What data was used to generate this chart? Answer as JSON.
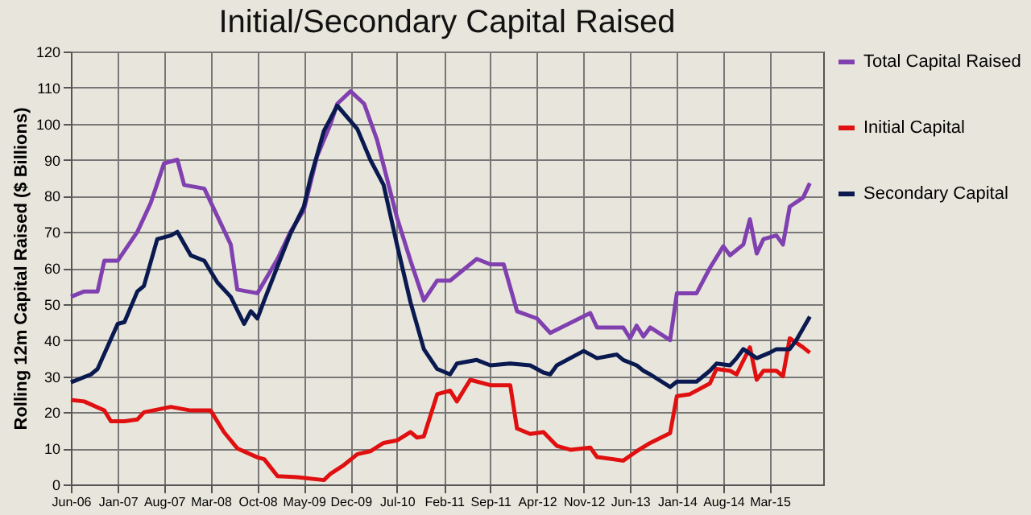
{
  "chart_data": {
    "type": "line",
    "title": "Initial/Secondary Capital Raised",
    "ylabel": "Rolling 12m Capital Raised ($ Billions)",
    "xlim": [
      "2006-06",
      "2015-11"
    ],
    "ylim": [
      0,
      120
    ],
    "yticks": [
      0,
      10,
      20,
      30,
      40,
      50,
      60,
      70,
      80,
      90,
      100,
      110,
      120
    ],
    "xticks": [
      {
        "value": "2006-06",
        "label": "Jun-06"
      },
      {
        "value": "2007-01",
        "label": "Jan-07"
      },
      {
        "value": "2007-08",
        "label": "Aug-07"
      },
      {
        "value": "2008-03",
        "label": "Mar-08"
      },
      {
        "value": "2008-10",
        "label": "Oct-08"
      },
      {
        "value": "2009-05",
        "label": "May-09"
      },
      {
        "value": "2009-12",
        "label": "Dec-09"
      },
      {
        "value": "2010-07",
        "label": "Jul-10"
      },
      {
        "value": "2011-02",
        "label": "Feb-11"
      },
      {
        "value": "2011-09",
        "label": "Sep-11"
      },
      {
        "value": "2012-04",
        "label": "Apr-12"
      },
      {
        "value": "2012-11",
        "label": "Nov-12"
      },
      {
        "value": "2013-06",
        "label": "Jun-13"
      },
      {
        "value": "2014-01",
        "label": "Jan-14"
      },
      {
        "value": "2014-08",
        "label": "Aug-14"
      },
      {
        "value": "2015-03",
        "label": "Mar-15"
      }
    ],
    "grid": true,
    "legend": "right",
    "line_style": "solid",
    "series": [
      {
        "name": "Total Capital Raised",
        "color": "#8040b0",
        "x": [
          "2006-06",
          "2006-08",
          "2006-10",
          "2006-11",
          "2007-01",
          "2007-04",
          "2007-06",
          "2007-08",
          "2007-10",
          "2007-11",
          "2008-02",
          "2008-06",
          "2008-07",
          "2008-10",
          "2009-01",
          "2009-03",
          "2009-05",
          "2009-07",
          "2009-09",
          "2009-10",
          "2009-12",
          "2010-02",
          "2010-04",
          "2010-07",
          "2010-09",
          "2010-11",
          "2011-01",
          "2011-03",
          "2011-07",
          "2011-09",
          "2011-11",
          "2012-01",
          "2012-04",
          "2012-06",
          "2012-12",
          "2013-01",
          "2013-05",
          "2013-06",
          "2013-07",
          "2013-08",
          "2013-09",
          "2013-12",
          "2014-01",
          "2014-04",
          "2014-06",
          "2014-08",
          "2014-09",
          "2014-11",
          "2014-12",
          "2015-01",
          "2015-02",
          "2015-04",
          "2015-05",
          "2015-06",
          "2015-08",
          "2015-09"
        ],
        "values": [
          52,
          53.5,
          53.5,
          62,
          62,
          70,
          78,
          89,
          90,
          83,
          82,
          66.5,
          54,
          53,
          62.5,
          70,
          76,
          91,
          100,
          105.5,
          109,
          105.5,
          95.5,
          74,
          62,
          51,
          56.5,
          56.5,
          62.5,
          61,
          61,
          48,
          46,
          42,
          47.5,
          43.5,
          43.5,
          40.5,
          44,
          41,
          43.5,
          40,
          53,
          53,
          60,
          66,
          63.5,
          66.5,
          73.5,
          64,
          68,
          69,
          66.5,
          77,
          79.5,
          83.5
        ]
      },
      {
        "name": "Initial Capital",
        "color": "#e01010",
        "x": [
          "2006-06",
          "2006-08",
          "2006-11",
          "2006-12",
          "2007-02",
          "2007-04",
          "2007-05",
          "2007-09",
          "2007-12",
          "2008-03",
          "2008-05",
          "2008-07",
          "2008-10",
          "2008-11",
          "2009-01",
          "2009-04",
          "2009-08",
          "2009-09",
          "2009-11",
          "2010-01",
          "2010-03",
          "2010-05",
          "2010-07",
          "2010-09",
          "2010-10",
          "2010-11",
          "2011-01",
          "2011-03",
          "2011-04",
          "2011-06",
          "2011-09",
          "2011-12",
          "2012-01",
          "2012-03",
          "2012-05",
          "2012-07",
          "2012-09",
          "2012-12",
          "2013-01",
          "2013-05",
          "2013-07",
          "2013-09",
          "2013-12",
          "2014-01",
          "2014-03",
          "2014-06",
          "2014-07",
          "2014-09",
          "2014-10",
          "2014-12",
          "2015-01",
          "2015-02",
          "2015-04",
          "2015-05",
          "2015-06",
          "2015-08",
          "2015-09"
        ],
        "values": [
          23.4,
          23,
          20.5,
          17.5,
          17.5,
          18,
          20,
          21.5,
          20.5,
          20.5,
          14.5,
          10,
          7.5,
          7,
          2.3,
          2,
          1.2,
          3,
          5.4,
          8.4,
          9.2,
          11.5,
          12.2,
          14.5,
          13,
          13.3,
          25,
          26,
          23,
          29,
          27.5,
          27.5,
          15.5,
          14,
          14.5,
          10.7,
          9.6,
          10.2,
          7.6,
          6.6,
          9.2,
          11.5,
          14.2,
          24.5,
          25,
          28,
          32,
          31.5,
          30.5,
          38,
          29,
          31.5,
          31.5,
          30,
          40.5,
          38,
          36.5
        ]
      },
      {
        "name": "Secondary Capital",
        "color": "#0a1a50",
        "x": [
          "2006-06",
          "2006-09",
          "2006-10",
          "2007-01",
          "2007-02",
          "2007-04",
          "2007-05",
          "2007-07",
          "2007-09",
          "2007-10",
          "2007-12",
          "2008-02",
          "2008-04",
          "2008-06",
          "2008-08",
          "2008-09",
          "2008-10",
          "2008-11",
          "2009-01",
          "2009-03",
          "2009-05",
          "2009-06",
          "2009-08",
          "2009-09",
          "2009-10",
          "2010-01",
          "2010-03",
          "2010-05",
          "2010-07",
          "2010-09",
          "2010-11",
          "2011-01",
          "2011-03",
          "2011-04",
          "2011-07",
          "2011-09",
          "2011-12",
          "2012-03",
          "2012-05",
          "2012-06",
          "2012-07",
          "2012-11",
          "2013-01",
          "2013-04",
          "2013-05",
          "2013-07",
          "2013-08",
          "2013-09",
          "2013-12",
          "2014-01",
          "2014-04",
          "2014-06",
          "2014-07",
          "2014-09",
          "2014-10",
          "2014-11",
          "2015-01",
          "2015-03",
          "2015-04",
          "2015-06",
          "2015-07",
          "2015-09"
        ],
        "values": [
          28.3,
          30.5,
          32,
          44.5,
          45,
          53.5,
          55,
          68,
          69,
          70,
          63.5,
          62,
          56,
          52,
          44.5,
          48,
          46,
          51,
          60.5,
          69.5,
          77,
          85,
          98,
          101.5,
          105,
          98.5,
          90,
          83,
          66.5,
          50.5,
          37.5,
          32,
          30.5,
          33.5,
          34.5,
          33,
          33.5,
          33,
          31,
          30.5,
          33,
          37,
          35,
          36,
          34.5,
          33,
          31.5,
          30.5,
          27,
          28.5,
          28.5,
          31.5,
          33.5,
          33,
          35,
          37.5,
          35,
          36.5,
          37.5,
          37.5,
          40,
          46.5
        ]
      }
    ]
  }
}
